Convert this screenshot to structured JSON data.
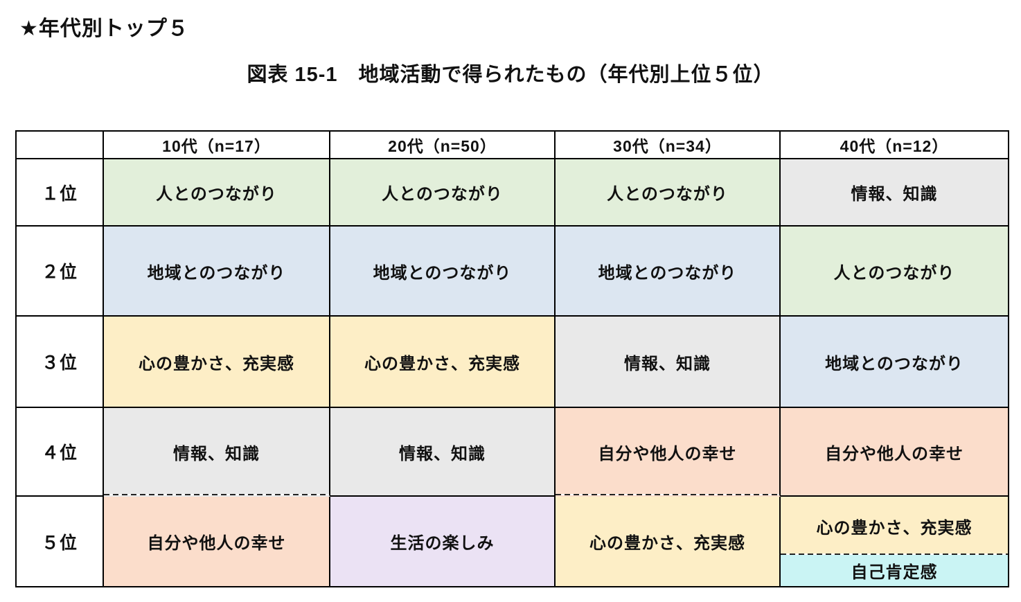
{
  "page": {
    "heading": "★年代別トップ５",
    "figure_title": "図表 15-1　地域活動で得られたもの（年代別上位５位）"
  },
  "table": {
    "columns": [
      "10代（n=17）",
      "20代（n=50）",
      "30代（n=34）",
      "40代（n=12）"
    ],
    "rows": [
      {
        "rank": "１位",
        "cells": [
          {
            "text": "人とのつながり",
            "fill": "green"
          },
          {
            "text": "人とのつながり",
            "fill": "green"
          },
          {
            "text": "人とのつながり",
            "fill": "green"
          },
          {
            "text": "情報、知識",
            "fill": "gray"
          }
        ]
      },
      {
        "rank": "２位",
        "cells": [
          {
            "text": "地域とのつながり",
            "fill": "blue"
          },
          {
            "text": "地域とのつながり",
            "fill": "blue"
          },
          {
            "text": "地域とのつながり",
            "fill": "blue"
          },
          {
            "text": "人とのつながり",
            "fill": "green"
          }
        ]
      },
      {
        "rank": "３位",
        "cells": [
          {
            "text": "心の豊かさ、充実感",
            "fill": "yellow"
          },
          {
            "text": "心の豊かさ、充実感",
            "fill": "yellow"
          },
          {
            "text": "情報、知識",
            "fill": "gray"
          },
          {
            "text": "地域とのつながり",
            "fill": "blue"
          }
        ]
      },
      {
        "rank": "４位",
        "cells": [
          {
            "text": "情報、知識",
            "fill": "gray",
            "bottom_border": "dashed"
          },
          {
            "text": "情報、知識",
            "fill": "gray"
          },
          {
            "text": "自分や他人の幸せ",
            "fill": "pink",
            "bottom_border": "dashed"
          },
          {
            "text": "自分や他人の幸せ",
            "fill": "pink"
          }
        ]
      },
      {
        "rank": "５位",
        "cells": [
          {
            "text": "自分や他人の幸せ",
            "fill": "pink"
          },
          {
            "text": "生活の楽しみ",
            "fill": "purple"
          },
          {
            "text": "心の豊かさ、充実感",
            "fill": "yellow"
          },
          {
            "split": [
              {
                "text": "心の豊かさ、充実感",
                "fill": "yellow"
              },
              {
                "text": "自己肯定感",
                "fill": "cyan"
              }
            ],
            "split_divider": "dashed"
          }
        ]
      }
    ]
  },
  "colors": {
    "green": "#E2EFDA",
    "blue": "#DCE6F1",
    "yellow": "#FDEEC6",
    "gray": "#E9E9E9",
    "pink": "#FBDDCB",
    "purple": "#EBE2F4",
    "cyan": "#CAF4F4",
    "border": "#000000",
    "text": "#111111"
  }
}
